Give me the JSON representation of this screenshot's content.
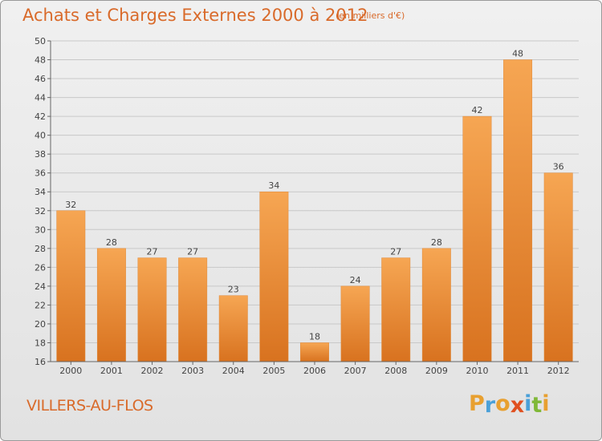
{
  "header": {
    "title": "Achats et Charges Externes 2000 à 2012",
    "subtitle": "(en milliers d'€)"
  },
  "footer": {
    "commune": "VILLERS-AU-FLOS",
    "logo": {
      "letters": [
        "P",
        "r",
        "o",
        "x",
        "i",
        "t",
        "i"
      ],
      "colors": [
        "#e8a030",
        "#4aa0d8",
        "#e8a030",
        "#e05020",
        "#4aa0d8",
        "#80b838",
        "#e8a030"
      ]
    }
  },
  "chart_data": {
    "type": "bar",
    "categories": [
      "2000",
      "2001",
      "2002",
      "2003",
      "2004",
      "2005",
      "2006",
      "2007",
      "2008",
      "2009",
      "2010",
      "2011",
      "2012"
    ],
    "values": [
      32,
      28,
      27,
      27,
      23,
      34,
      18,
      24,
      27,
      28,
      42,
      48,
      36
    ],
    "data_labels": [
      "32",
      "28",
      "27",
      "27",
      "23",
      "34",
      "18",
      "24",
      "27",
      "28",
      "42",
      "48",
      "36"
    ],
    "ylim": [
      16,
      50
    ],
    "yticks": [
      16,
      18,
      20,
      22,
      24,
      26,
      28,
      30,
      32,
      34,
      36,
      38,
      40,
      42,
      44,
      46,
      48,
      50
    ],
    "title": "Achats et Charges Externes 2000 à 2012",
    "xlabel": "",
    "ylabel": "",
    "grid": true,
    "colors": {
      "bar_light": "#f6a653",
      "bar_dark": "#d8721f",
      "grid": "#c8c8c8",
      "text": "#444444"
    }
  }
}
